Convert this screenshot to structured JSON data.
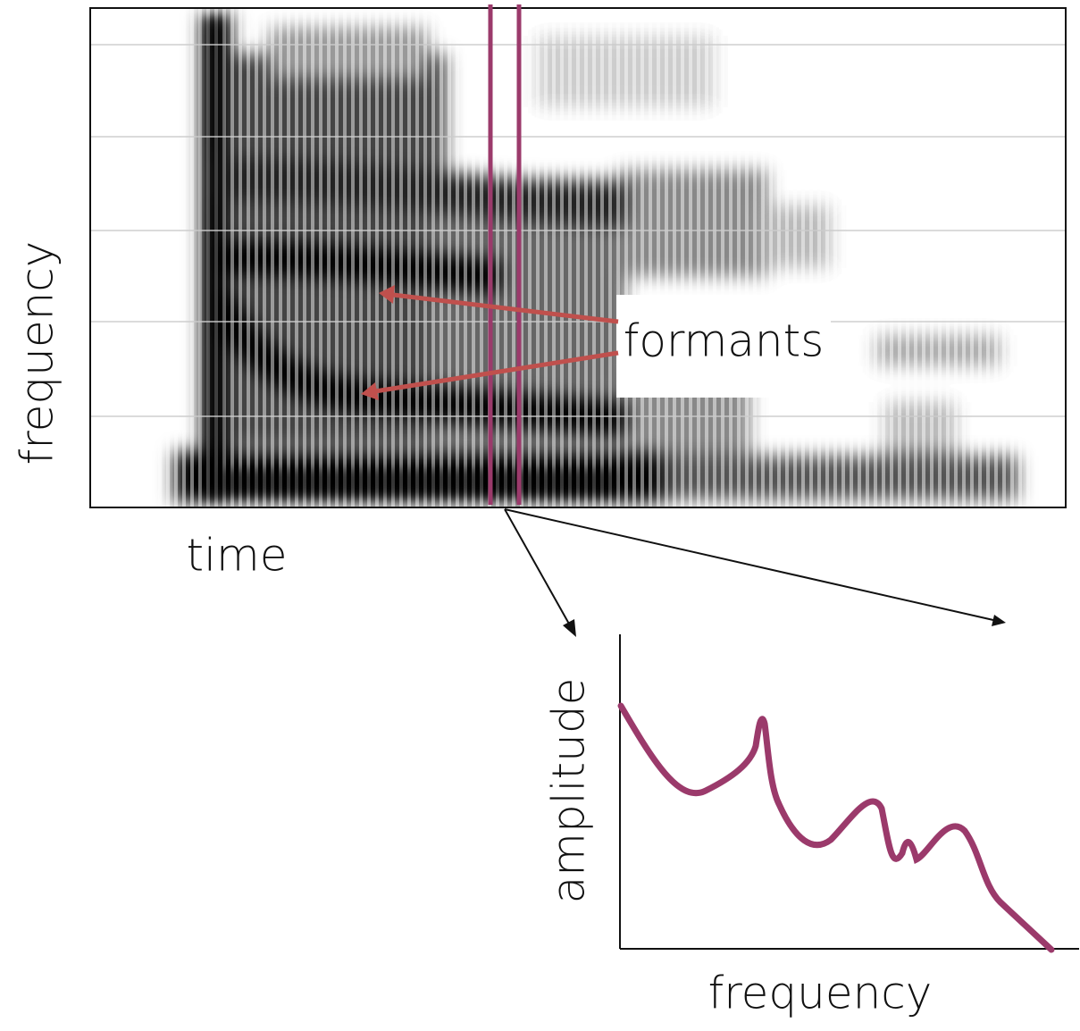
{
  "spectrogram": {
    "y_label": "frequency",
    "x_label": "time",
    "annotation": "formants"
  },
  "spectrum": {
    "y_label": "amplitude",
    "x_label": "frequency"
  }
}
